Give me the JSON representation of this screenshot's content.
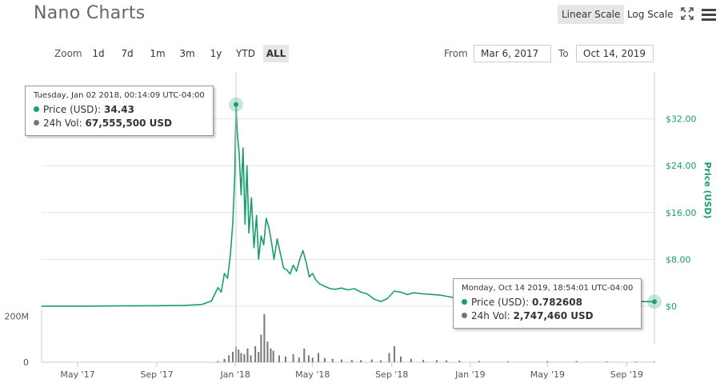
{
  "header": {
    "title": "Nano Charts",
    "linear_scale_label": "Linear Scale",
    "log_scale_label": "Log Scale",
    "fullscreen_icon": "fullscreen-icon",
    "menu_icon": "hamburger-menu-icon"
  },
  "zoom": {
    "label": "Zoom",
    "buttons": [
      "1d",
      "7d",
      "1m",
      "3m",
      "1y",
      "YTD",
      "ALL"
    ],
    "active": "ALL"
  },
  "range": {
    "from_label": "From",
    "from_value": "Mar 6, 2017",
    "to_label": "To",
    "to_value": "Oct 14, 2019"
  },
  "tooltips": [
    {
      "date": "Tuesday, Jan 02 2018, 00:14:09 UTC-04:00",
      "price_label": "Price (USD):",
      "price_value": "34.43",
      "vol_label": "24h Vol:",
      "vol_value": "67,555,500 USD"
    },
    {
      "date": "Monday, Oct 14 2019, 18:54:01 UTC-04:00",
      "price_label": "Price (USD):",
      "price_value": "0.782608",
      "vol_label": "24h Vol:",
      "vol_value": "2,747,460 USD"
    }
  ],
  "colors": {
    "price": "#1a9e6e",
    "volume": "#777777",
    "grid": "#e6e6e6",
    "axis_label": "#1a9e6e"
  },
  "chart_data": {
    "type": "line",
    "price_axis": {
      "label": "Price (USD)",
      "ticks": [
        0,
        8,
        16,
        24,
        32
      ],
      "tick_labels": [
        "$0",
        "$8.00",
        "$16.00",
        "$24.00",
        "$32.00"
      ],
      "ylim": [
        0,
        40
      ]
    },
    "volume_axis": {
      "ticks": [
        0,
        200000000
      ],
      "tick_labels": [
        "0",
        "200M"
      ],
      "ylim": [
        0,
        230000000
      ]
    },
    "x_axis": {
      "range": [
        "2017-03-06",
        "2019-10-14"
      ],
      "ticks": [
        "2017-05-01",
        "2017-09-01",
        "2018-01-01",
        "2018-05-01",
        "2018-09-01",
        "2019-01-01",
        "2019-05-01",
        "2019-09-01"
      ],
      "tick_labels": [
        "May '17",
        "Sep '17",
        "Jan '18",
        "May '18",
        "Sep '18",
        "Jan '19",
        "May '19",
        "Sep '19"
      ]
    },
    "series": [
      {
        "name": "Price (USD)",
        "x": [
          "2017-03-06",
          "2017-05-01",
          "2017-07-01",
          "2017-09-01",
          "2017-10-15",
          "2017-11-10",
          "2017-11-25",
          "2017-12-05",
          "2017-12-10",
          "2017-12-15",
          "2017-12-20",
          "2017-12-24",
          "2017-12-28",
          "2017-12-31",
          "2018-01-02",
          "2018-01-04",
          "2018-01-07",
          "2018-01-10",
          "2018-01-13",
          "2018-01-16",
          "2018-01-19",
          "2018-01-22",
          "2018-01-26",
          "2018-01-30",
          "2018-02-03",
          "2018-02-06",
          "2018-02-10",
          "2018-02-14",
          "2018-02-18",
          "2018-02-22",
          "2018-02-26",
          "2018-03-02",
          "2018-03-07",
          "2018-03-12",
          "2018-03-17",
          "2018-03-22",
          "2018-03-27",
          "2018-04-01",
          "2018-04-06",
          "2018-04-11",
          "2018-04-16",
          "2018-04-21",
          "2018-04-26",
          "2018-05-01",
          "2018-05-06",
          "2018-05-12",
          "2018-05-20",
          "2018-05-28",
          "2018-06-05",
          "2018-06-15",
          "2018-06-25",
          "2018-07-05",
          "2018-07-15",
          "2018-07-25",
          "2018-08-05",
          "2018-08-15",
          "2018-08-25",
          "2018-09-05",
          "2018-09-15",
          "2018-09-25",
          "2018-10-05",
          "2018-10-20",
          "2018-11-05",
          "2018-11-15",
          "2018-11-25",
          "2018-12-10",
          "2018-12-25",
          "2019-01-15",
          "2019-02-15",
          "2019-03-15",
          "2019-04-15",
          "2019-05-15",
          "2019-06-15",
          "2019-07-15",
          "2019-08-15",
          "2019-09-15",
          "2019-10-14"
        ],
        "values": [
          0.02,
          0.02,
          0.05,
          0.1,
          0.15,
          0.3,
          0.9,
          3.2,
          2.4,
          5.6,
          4.8,
          8.5,
          14.2,
          22.0,
          34.43,
          29.5,
          26.0,
          19.0,
          27.0,
          14.0,
          24.0,
          12.5,
          18.5,
          10.0,
          15.5,
          8.0,
          12.0,
          10.5,
          15.0,
          13.5,
          11.0,
          8.0,
          11.5,
          9.0,
          6.5,
          6.2,
          5.5,
          7.0,
          6.0,
          8.0,
          9.5,
          7.5,
          5.0,
          5.6,
          4.5,
          3.8,
          3.4,
          3.0,
          2.9,
          3.1,
          2.8,
          3.0,
          2.4,
          2.1,
          1.2,
          0.8,
          1.3,
          2.6,
          2.4,
          2.0,
          2.3,
          2.1,
          2.0,
          1.9,
          1.7,
          1.4,
          1.1,
          0.9,
          0.95,
          1.0,
          1.2,
          1.3,
          1.1,
          0.95,
          0.85,
          0.8,
          0.782608
        ]
      },
      {
        "name": "24h Vol",
        "x": [
          "2017-12-05",
          "2017-12-15",
          "2017-12-22",
          "2017-12-28",
          "2018-01-02",
          "2018-01-06",
          "2018-01-10",
          "2018-01-15",
          "2018-01-20",
          "2018-01-25",
          "2018-02-01",
          "2018-02-06",
          "2018-02-10",
          "2018-02-15",
          "2018-02-20",
          "2018-02-25",
          "2018-03-01",
          "2018-03-10",
          "2018-03-20",
          "2018-04-01",
          "2018-04-10",
          "2018-04-18",
          "2018-04-25",
          "2018-05-01",
          "2018-05-10",
          "2018-05-20",
          "2018-06-01",
          "2018-06-15",
          "2018-07-01",
          "2018-07-15",
          "2018-08-01",
          "2018-08-15",
          "2018-08-28",
          "2018-09-05",
          "2018-09-15",
          "2018-10-01",
          "2018-10-20",
          "2018-11-10",
          "2018-11-25",
          "2018-12-15",
          "2019-01-15",
          "2019-03-01",
          "2019-05-01",
          "2019-06-15",
          "2019-08-01",
          "2019-09-15",
          "2019-10-14"
        ],
        "values": [
          5000000,
          15000000,
          30000000,
          45000000,
          67555500,
          55000000,
          40000000,
          35000000,
          60000000,
          30000000,
          70000000,
          45000000,
          120000000,
          210000000,
          90000000,
          60000000,
          50000000,
          30000000,
          25000000,
          35000000,
          20000000,
          60000000,
          30000000,
          20000000,
          40000000,
          18000000,
          15000000,
          12000000,
          10000000,
          9000000,
          12000000,
          8000000,
          40000000,
          70000000,
          25000000,
          15000000,
          10000000,
          9000000,
          8000000,
          7000000,
          5000000,
          4000000,
          4500000,
          5000000,
          3500000,
          3000000,
          2747460
        ]
      }
    ]
  }
}
